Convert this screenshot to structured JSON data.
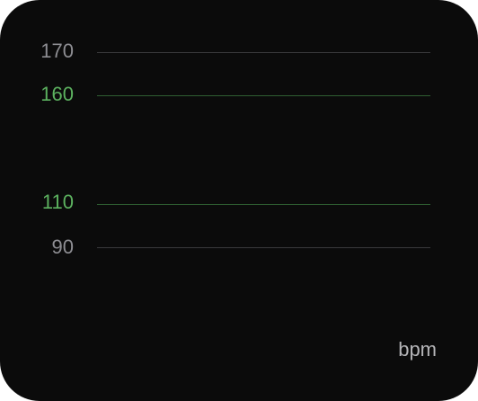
{
  "heart_rate_zones": {
    "unit": "bpm",
    "lines": [
      {
        "value": "170",
        "kind": "limit",
        "label_color": "#8d8d92",
        "line_color": "#3a3a3c"
      },
      {
        "value": "160",
        "kind": "zone",
        "label_color": "#5cb15f",
        "line_color": "#2f5f32"
      },
      {
        "value": "110",
        "kind": "zone",
        "label_color": "#5cb15f",
        "line_color": "#2f5f32"
      },
      {
        "value": "90",
        "kind": "limit",
        "label_color": "#8d8d92",
        "line_color": "#3a3a3c"
      }
    ]
  }
}
